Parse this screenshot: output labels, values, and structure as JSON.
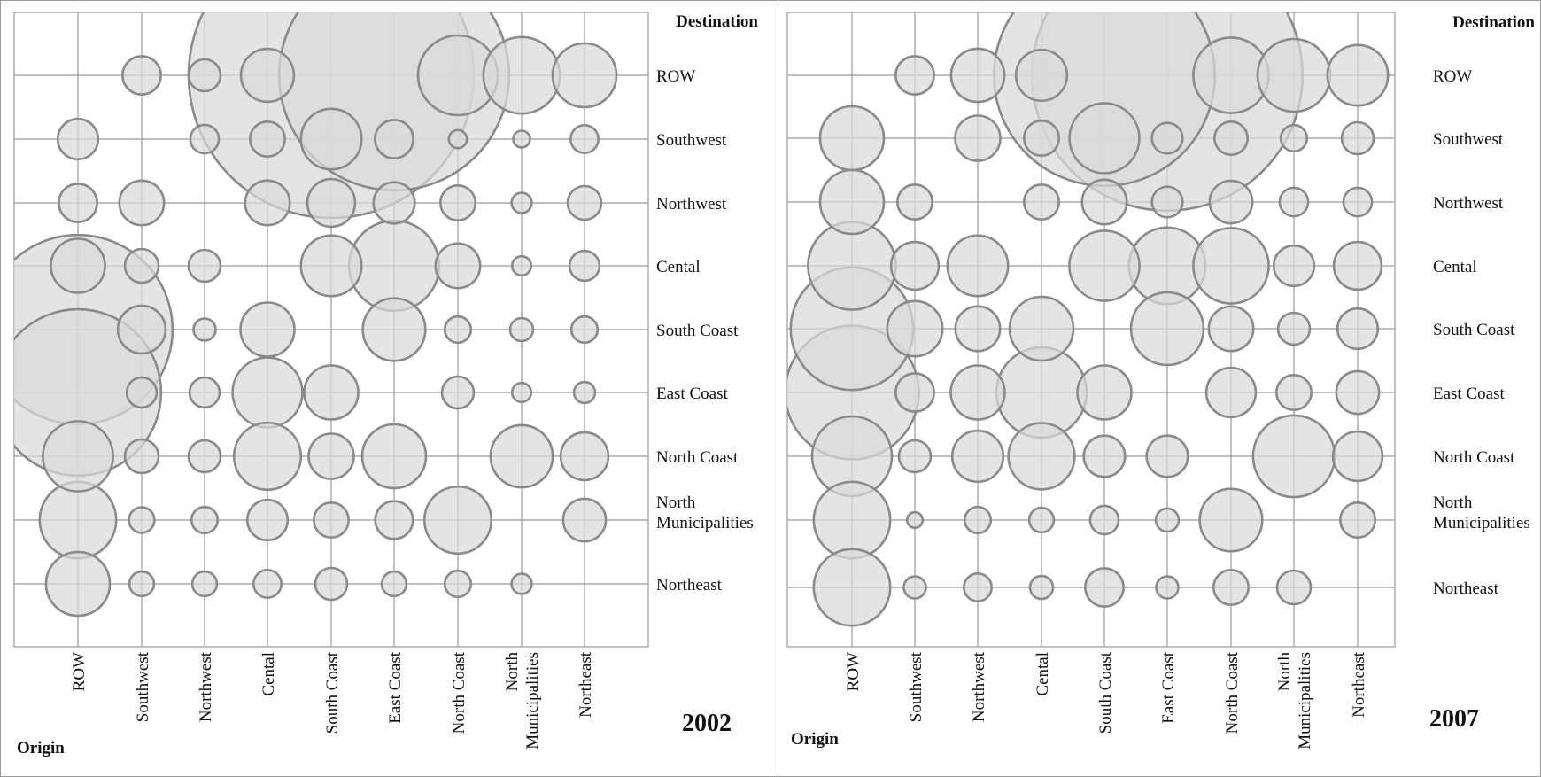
{
  "chart_data": [
    {
      "type": "bubble-matrix",
      "panel_label": "2002",
      "xlabel": "Origin",
      "ylabel": "Destination",
      "origin_labels": [
        "ROW",
        "Southwest",
        "Northwest",
        "Cental",
        "South Coast",
        "East Coast",
        "North Coast",
        "North Municipalities",
        "Northeast"
      ],
      "destination_labels": [
        "ROW",
        "Southwest",
        "Northwest",
        "Cental",
        "South Coast",
        "East Coast",
        "North Coast",
        "North Municipalities",
        "Northeast"
      ],
      "bubbles": [
        {
          "origin": "Southwest",
          "destination": "ROW",
          "size": 0.36
        },
        {
          "origin": "Northwest",
          "destination": "ROW",
          "size": 0.25
        },
        {
          "origin": "Cental",
          "destination": "ROW",
          "size": 0.69
        },
        {
          "origin": "South Coast",
          "destination": "ROW",
          "size": 20.0
        },
        {
          "origin": "East Coast",
          "destination": "ROW",
          "size": 13.0
        },
        {
          "origin": "North Coast",
          "destination": "ROW",
          "size": 1.56
        },
        {
          "origin": "North Municipalities",
          "destination": "ROW",
          "size": 1.44
        },
        {
          "origin": "Northeast",
          "destination": "ROW",
          "size": 1.0
        },
        {
          "origin": "ROW",
          "destination": "Southwest",
          "size": 0.4
        },
        {
          "origin": "Northwest",
          "destination": "Southwest",
          "size": 0.2
        },
        {
          "origin": "Cental",
          "destination": "Southwest",
          "size": 0.3
        },
        {
          "origin": "South Coast",
          "destination": "Southwest",
          "size": 0.9
        },
        {
          "origin": "East Coast",
          "destination": "Southwest",
          "size": 0.36
        },
        {
          "origin": "North Coast",
          "destination": "Southwest",
          "size": 0.08
        },
        {
          "origin": "North Municipalities",
          "destination": "Southwest",
          "size": 0.07
        },
        {
          "origin": "Northeast",
          "destination": "Southwest",
          "size": 0.19
        },
        {
          "origin": "ROW",
          "destination": "Northwest",
          "size": 0.36
        },
        {
          "origin": "Southwest",
          "destination": "Northwest",
          "size": 0.49
        },
        {
          "origin": "Cental",
          "destination": "Northwest",
          "size": 0.49
        },
        {
          "origin": "South Coast",
          "destination": "Northwest",
          "size": 0.56
        },
        {
          "origin": "East Coast",
          "destination": "Northwest",
          "size": 0.42
        },
        {
          "origin": "North Coast",
          "destination": "Northwest",
          "size": 0.3
        },
        {
          "origin": "North Municipalities",
          "destination": "Northwest",
          "size": 0.1
        },
        {
          "origin": "Northeast",
          "destination": "Northwest",
          "size": 0.28
        },
        {
          "origin": "ROW",
          "destination": "Cental",
          "size": 0.72
        },
        {
          "origin": "Southwest",
          "destination": "Cental",
          "size": 0.28
        },
        {
          "origin": "Northwest",
          "destination": "Cental",
          "size": 0.25
        },
        {
          "origin": "South Coast",
          "destination": "Cental",
          "size": 0.9
        },
        {
          "origin": "East Coast",
          "destination": "Cental",
          "size": 2.0
        },
        {
          "origin": "North Coast",
          "destination": "Cental",
          "size": 0.49
        },
        {
          "origin": "North Municipalities",
          "destination": "Cental",
          "size": 0.09
        },
        {
          "origin": "Northeast",
          "destination": "Cental",
          "size": 0.22
        },
        {
          "origin": "ROW",
          "destination": "South Coast",
          "size": 8.8
        },
        {
          "origin": "Southwest",
          "destination": "South Coast",
          "size": 0.56
        },
        {
          "origin": "Northwest",
          "destination": "South Coast",
          "size": 0.12
        },
        {
          "origin": "Cental",
          "destination": "South Coast",
          "size": 0.72
        },
        {
          "origin": "East Coast",
          "destination": "South Coast",
          "size": 0.96
        },
        {
          "origin": "North Coast",
          "destination": "South Coast",
          "size": 0.17
        },
        {
          "origin": "North Municipalities",
          "destination": "South Coast",
          "size": 0.13
        },
        {
          "origin": "Northeast",
          "destination": "South Coast",
          "size": 0.17
        },
        {
          "origin": "ROW",
          "destination": "East Coast",
          "size": 6.8
        },
        {
          "origin": "Southwest",
          "destination": "East Coast",
          "size": 0.22
        },
        {
          "origin": "Northwest",
          "destination": "East Coast",
          "size": 0.22
        },
        {
          "origin": "Cental",
          "destination": "East Coast",
          "size": 1.2
        },
        {
          "origin": "South Coast",
          "destination": "East Coast",
          "size": 0.72
        },
        {
          "origin": "North Coast",
          "destination": "East Coast",
          "size": 0.25
        },
        {
          "origin": "North Municipalities",
          "destination": "East Coast",
          "size": 0.09
        },
        {
          "origin": "Northeast",
          "destination": "East Coast",
          "size": 0.11
        },
        {
          "origin": "ROW",
          "destination": "North Coast",
          "size": 1.21
        },
        {
          "origin": "Southwest",
          "destination": "North Coast",
          "size": 0.28
        },
        {
          "origin": "Northwest",
          "destination": "North Coast",
          "size": 0.25
        },
        {
          "origin": "Cental",
          "destination": "North Coast",
          "size": 1.1
        },
        {
          "origin": "South Coast",
          "destination": "North Coast",
          "size": 0.5
        },
        {
          "origin": "East Coast",
          "destination": "North Coast",
          "size": 1.0
        },
        {
          "origin": "North Municipalities",
          "destination": "North Coast",
          "size": 0.95
        },
        {
          "origin": "Northeast",
          "destination": "North Coast",
          "size": 0.56
        },
        {
          "origin": "ROW",
          "destination": "North Municipalities",
          "size": 1.44
        },
        {
          "origin": "Southwest",
          "destination": "North Municipalities",
          "size": 0.16
        },
        {
          "origin": "Northwest",
          "destination": "North Municipalities",
          "size": 0.17
        },
        {
          "origin": "Cental",
          "destination": "North Municipalities",
          "size": 0.4
        },
        {
          "origin": "South Coast",
          "destination": "North Municipalities",
          "size": 0.3
        },
        {
          "origin": "East Coast",
          "destination": "North Municipalities",
          "size": 0.35
        },
        {
          "origin": "North Coast",
          "destination": "North Municipalities",
          "size": 1.1
        },
        {
          "origin": "Northeast",
          "destination": "North Municipalities",
          "size": 0.45
        },
        {
          "origin": "ROW",
          "destination": "Northeast",
          "size": 1.0
        },
        {
          "origin": "Southwest",
          "destination": "Northeast",
          "size": 0.15
        },
        {
          "origin": "Northwest",
          "destination": "Northeast",
          "size": 0.15
        },
        {
          "origin": "Cental",
          "destination": "Northeast",
          "size": 0.19
        },
        {
          "origin": "South Coast",
          "destination": "Northeast",
          "size": 0.25
        },
        {
          "origin": "East Coast",
          "destination": "Northeast",
          "size": 0.15
        },
        {
          "origin": "North Coast",
          "destination": "Northeast",
          "size": 0.17
        },
        {
          "origin": "North Municipalities",
          "destination": "Northeast",
          "size": 0.1
        }
      ]
    },
    {
      "type": "bubble-matrix",
      "panel_label": "2007",
      "xlabel": "Origin",
      "ylabel": "Destination",
      "origin_labels": [
        "ROW",
        "Southwest",
        "Northwest",
        "Cental",
        "South Coast",
        "East Coast",
        "North Coast",
        "North Municipalities",
        "Northeast"
      ],
      "destination_labels": [
        "ROW",
        "Southwest",
        "Northwest",
        "Cental",
        "South Coast",
        "East Coast",
        "North Coast",
        "North Municipalities",
        "Northeast"
      ],
      "bubbles": [
        {
          "origin": "Southwest",
          "destination": "ROW",
          "size": 0.36
        },
        {
          "origin": "Northwest",
          "destination": "ROW",
          "size": 0.7
        },
        {
          "origin": "Cental",
          "destination": "ROW",
          "size": 0.64
        },
        {
          "origin": "South Coast",
          "destination": "ROW",
          "size": 12.0
        },
        {
          "origin": "East Coast",
          "destination": "ROW",
          "size": 18.0
        },
        {
          "origin": "North Coast",
          "destination": "ROW",
          "size": 1.4
        },
        {
          "origin": "North Municipalities",
          "destination": "ROW",
          "size": 1.3
        },
        {
          "origin": "Northeast",
          "destination": "ROW",
          "size": 0.9
        },
        {
          "origin": "ROW",
          "destination": "Southwest",
          "size": 1.0
        },
        {
          "origin": "Northwest",
          "destination": "Southwest",
          "size": 0.5
        },
        {
          "origin": "Cental",
          "destination": "Southwest",
          "size": 0.3
        },
        {
          "origin": "South Coast",
          "destination": "Southwest",
          "size": 1.2
        },
        {
          "origin": "East Coast",
          "destination": "Southwest",
          "size": 0.23
        },
        {
          "origin": "North Coast",
          "destination": "Southwest",
          "size": 0.27
        },
        {
          "origin": "North Municipalities",
          "destination": "Southwest",
          "size": 0.17
        },
        {
          "origin": "Northeast",
          "destination": "Southwest",
          "size": 0.25
        },
        {
          "origin": "ROW",
          "destination": "Northwest",
          "size": 1.0
        },
        {
          "origin": "Southwest",
          "destination": "Northwest",
          "size": 0.3
        },
        {
          "origin": "Cental",
          "destination": "Northwest",
          "size": 0.3
        },
        {
          "origin": "South Coast",
          "destination": "Northwest",
          "size": 0.49
        },
        {
          "origin": "East Coast",
          "destination": "Northwest",
          "size": 0.23
        },
        {
          "origin": "North Coast",
          "destination": "Northwest",
          "size": 0.45
        },
        {
          "origin": "North Municipalities",
          "destination": "Northwest",
          "size": 0.2
        },
        {
          "origin": "Northeast",
          "destination": "Northwest",
          "size": 0.2
        },
        {
          "origin": "ROW",
          "destination": "Cental",
          "size": 1.9
        },
        {
          "origin": "Southwest",
          "destination": "Cental",
          "size": 0.56
        },
        {
          "origin": "Northwest",
          "destination": "Cental",
          "size": 0.9
        },
        {
          "origin": "South Coast",
          "destination": "Cental",
          "size": 1.21
        },
        {
          "origin": "East Coast",
          "destination": "Cental",
          "size": 1.44
        },
        {
          "origin": "North Coast",
          "destination": "Cental",
          "size": 1.4
        },
        {
          "origin": "North Municipalities",
          "destination": "Cental",
          "size": 0.4
        },
        {
          "origin": "Northeast",
          "destination": "Cental",
          "size": 0.56
        },
        {
          "origin": "ROW",
          "destination": "South Coast",
          "size": 3.7
        },
        {
          "origin": "Southwest",
          "destination": "South Coast",
          "size": 0.75
        },
        {
          "origin": "Northwest",
          "destination": "South Coast",
          "size": 0.49
        },
        {
          "origin": "Cental",
          "destination": "South Coast",
          "size": 1.0
        },
        {
          "origin": "East Coast",
          "destination": "South Coast",
          "size": 1.3
        },
        {
          "origin": "North Coast",
          "destination": "South Coast",
          "size": 0.49
        },
        {
          "origin": "North Municipalities",
          "destination": "South Coast",
          "size": 0.25
        },
        {
          "origin": "Northeast",
          "destination": "South Coast",
          "size": 0.4
        },
        {
          "origin": "ROW",
          "destination": "East Coast",
          "size": 4.4
        },
        {
          "origin": "Southwest",
          "destination": "East Coast",
          "size": 0.36
        },
        {
          "origin": "Northwest",
          "destination": "East Coast",
          "size": 0.72
        },
        {
          "origin": "Cental",
          "destination": "East Coast",
          "size": 2.0
        },
        {
          "origin": "South Coast",
          "destination": "East Coast",
          "size": 0.72
        },
        {
          "origin": "North Coast",
          "destination": "East Coast",
          "size": 0.6
        },
        {
          "origin": "North Municipalities",
          "destination": "East Coast",
          "size": 0.3
        },
        {
          "origin": "Northeast",
          "destination": "East Coast",
          "size": 0.45
        },
        {
          "origin": "ROW",
          "destination": "North Coast",
          "size": 1.56
        },
        {
          "origin": "Southwest",
          "destination": "North Coast",
          "size": 0.25
        },
        {
          "origin": "Northwest",
          "destination": "North Coast",
          "size": 0.64
        },
        {
          "origin": "Cental",
          "destination": "North Coast",
          "size": 1.08
        },
        {
          "origin": "South Coast",
          "destination": "North Coast",
          "size": 0.42
        },
        {
          "origin": "East Coast",
          "destination": "North Coast",
          "size": 0.42
        },
        {
          "origin": "North Municipalities",
          "destination": "North Coast",
          "size": 1.64
        },
        {
          "origin": "Northeast",
          "destination": "North Coast",
          "size": 0.6
        },
        {
          "origin": "ROW",
          "destination": "North Municipalities",
          "size": 1.44
        },
        {
          "origin": "Southwest",
          "destination": "North Municipalities",
          "size": 0.06
        },
        {
          "origin": "Northwest",
          "destination": "North Municipalities",
          "size": 0.17
        },
        {
          "origin": "Cental",
          "destination": "North Municipalities",
          "size": 0.15
        },
        {
          "origin": "South Coast",
          "destination": "North Municipalities",
          "size": 0.2
        },
        {
          "origin": "East Coast",
          "destination": "North Municipalities",
          "size": 0.13
        },
        {
          "origin": "North Coast",
          "destination": "North Municipalities",
          "size": 0.96
        },
        {
          "origin": "Northeast",
          "destination": "North Municipalities",
          "size": 0.3
        },
        {
          "origin": "ROW",
          "destination": "Northeast",
          "size": 1.44
        },
        {
          "origin": "Southwest",
          "destination": "Northeast",
          "size": 0.12
        },
        {
          "origin": "Northwest",
          "destination": "Northeast",
          "size": 0.19
        },
        {
          "origin": "Cental",
          "destination": "Northeast",
          "size": 0.13
        },
        {
          "origin": "South Coast",
          "destination": "Northeast",
          "size": 0.36
        },
        {
          "origin": "East Coast",
          "destination": "Northeast",
          "size": 0.12
        },
        {
          "origin": "North Coast",
          "destination": "Northeast",
          "size": 0.3
        },
        {
          "origin": "North Municipalities",
          "destination": "Northeast",
          "size": 0.28
        }
      ]
    }
  ]
}
